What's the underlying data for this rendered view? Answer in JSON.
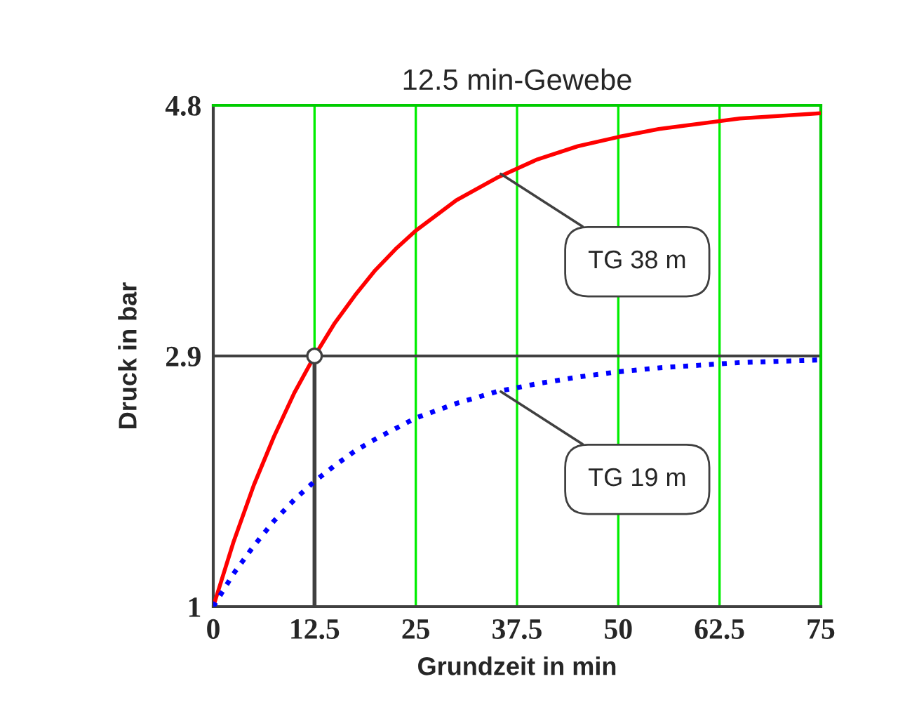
{
  "chart_data": {
    "type": "line",
    "title": "12.5 min-Gewebe",
    "xlabel": "Grundzeit in min",
    "ylabel": "Druck in bar",
    "x": [
      0,
      2.5,
      5,
      7.5,
      10,
      12.5,
      15,
      17.5,
      20,
      22.5,
      25,
      30,
      35,
      40,
      45,
      50,
      55,
      60,
      65,
      70,
      75
    ],
    "series": [
      {
        "color": "#ff0000",
        "line_style": "solid",
        "values": [
          1.0,
          1.49,
          1.92,
          2.29,
          2.62,
          2.9,
          3.15,
          3.36,
          3.55,
          3.71,
          3.85,
          4.08,
          4.25,
          4.39,
          4.49,
          4.56,
          4.62,
          4.66,
          4.7,
          4.72,
          4.74
        ]
      },
      {
        "color": "#0000ff",
        "line_style": "dotted",
        "values": [
          1.0,
          1.25,
          1.46,
          1.65,
          1.81,
          1.95,
          2.07,
          2.18,
          2.27,
          2.35,
          2.43,
          2.54,
          2.63,
          2.69,
          2.74,
          2.78,
          2.81,
          2.83,
          2.85,
          2.86,
          2.87
        ]
      },
      {
        "type": "scatter",
        "color": "#ffffff",
        "marker": "circle",
        "x": [
          12.5
        ],
        "values": [
          2.9
        ],
        "errors": [
          [
            1,
            2.9
          ]
        ]
      }
    ],
    "ref_lines": [
      {
        "axis": "y",
        "value": 2.9,
        "color": "#404040"
      }
    ],
    "annotations": [
      {
        "text": "TG 38 m",
        "x": 35.5,
        "y": 4.28
      },
      {
        "text": "TG 19 m",
        "x": 35.5,
        "y": 2.63
      }
    ],
    "xlim": [
      0,
      75
    ],
    "xticks": [
      0,
      12.5,
      25,
      37.5,
      50,
      62.5,
      75
    ],
    "ylim": [
      1,
      4.8
    ],
    "yticks": [
      1,
      2.9,
      4.8
    ],
    "grid": "x"
  }
}
